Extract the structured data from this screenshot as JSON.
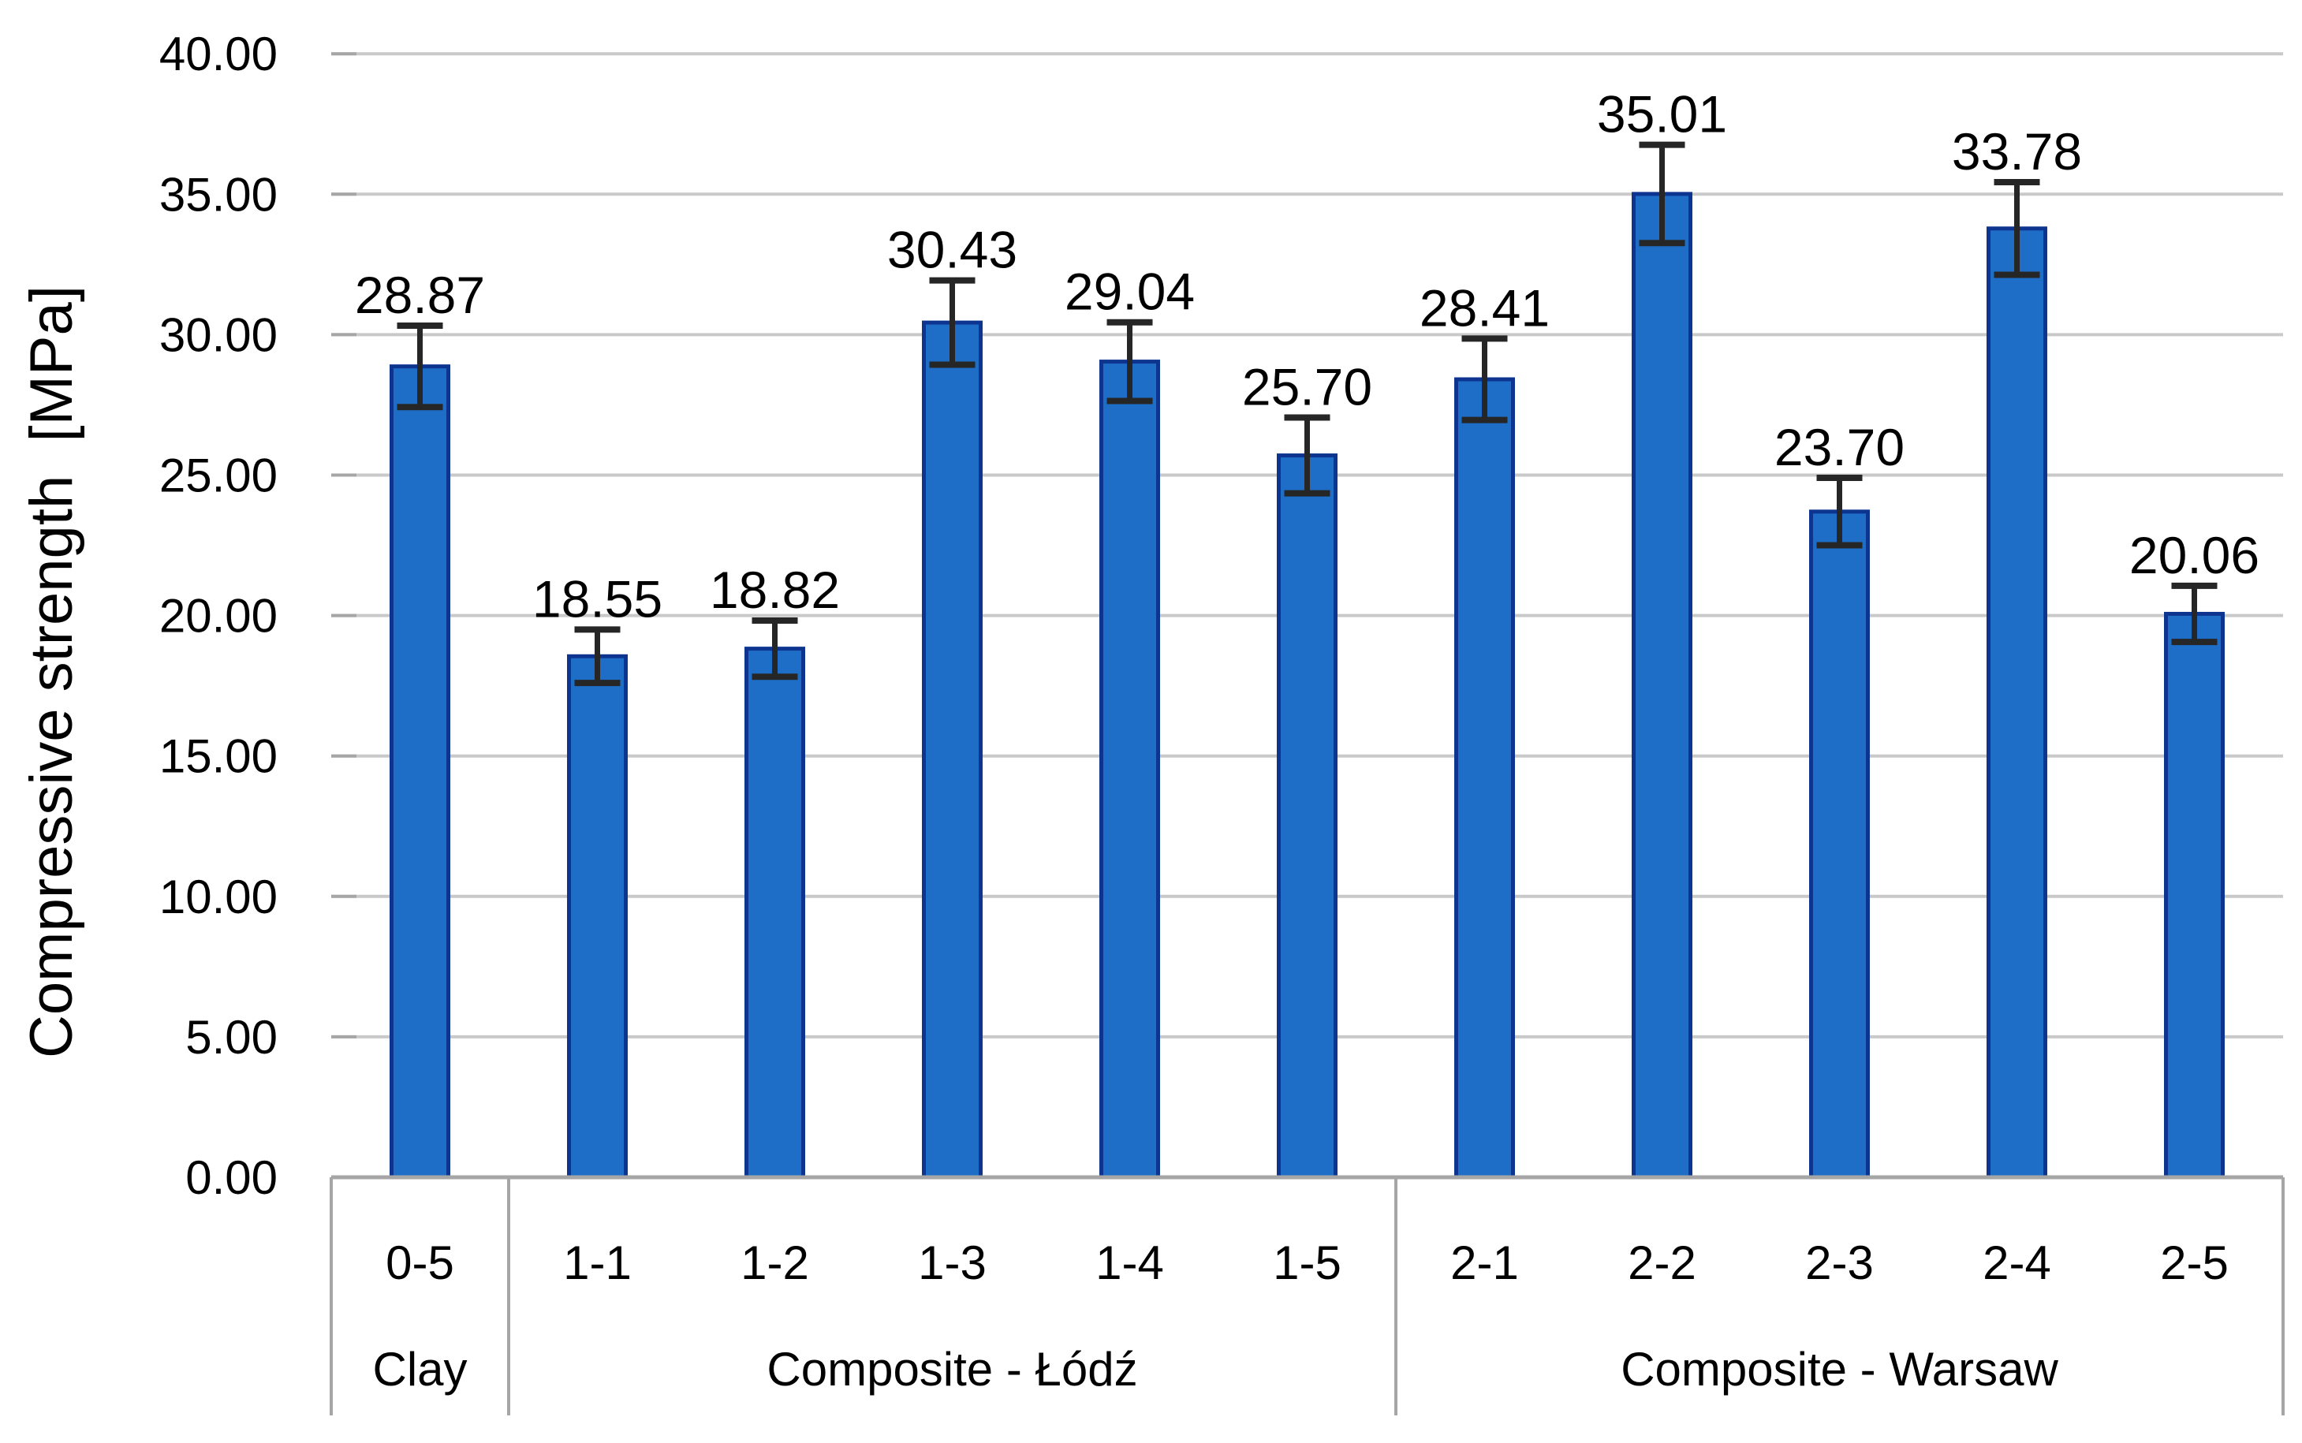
{
  "chart_data": {
    "type": "bar",
    "title": "",
    "xlabel": "",
    "ylabel": "Compressive strength  [MPa]",
    "ylim": [
      0,
      40
    ],
    "ytick_step": 5,
    "ytick_labels": [
      "0.00",
      "5.00",
      "10.00",
      "15.00",
      "20.00",
      "25.00",
      "30.00",
      "35.00",
      "40.00"
    ],
    "grid": true,
    "legend_position": "none",
    "categories": [
      "0-5",
      "1-1",
      "1-2",
      "1-3",
      "1-4",
      "1-5",
      "2-1",
      "2-2",
      "2-3",
      "2-4",
      "2-5"
    ],
    "values": [
      28.87,
      18.55,
      18.82,
      30.43,
      29.04,
      25.7,
      28.41,
      35.01,
      23.7,
      33.78,
      20.06
    ],
    "value_labels": [
      "28.87",
      "18.55",
      "18.82",
      "30.43",
      "29.04",
      "25.70",
      "28.41",
      "35.01",
      "23.70",
      "33.78",
      "20.06"
    ],
    "error_bars": [
      1.45,
      0.95,
      1.0,
      1.5,
      1.4,
      1.35,
      1.45,
      1.75,
      1.2,
      1.65,
      1.0
    ],
    "groups": [
      {
        "label": "Clay",
        "span": 1
      },
      {
        "label": "Composite - Łódź",
        "span": 5
      },
      {
        "label": "Composite - Warsaw",
        "span": 5
      }
    ],
    "colors": {
      "bar_fill": "#1E6EC8",
      "bar_border": "#0D3590",
      "error_bar": "#262626",
      "gridline": "#C9C9C9",
      "axis_line": "#A6A6A6",
      "text": "#000000",
      "background": "#FFFFFF"
    }
  }
}
